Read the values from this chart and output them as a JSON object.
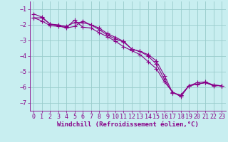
{
  "xlabel": "Windchill (Refroidissement éolien,°C)",
  "background_color": "#c8eef0",
  "line_color": "#880088",
  "grid_color": "#99cccc",
  "series": [
    {
      "x": [
        0,
        1,
        2,
        3,
        4,
        5,
        6,
        7,
        8,
        9,
        10,
        11,
        12,
        13,
        14,
        15,
        16,
        17,
        18,
        19,
        20,
        21,
        22,
        23
      ],
      "y": [
        -1.55,
        -1.75,
        -2.05,
        -2.1,
        -2.15,
        -1.7,
        -2.15,
        -2.2,
        -2.5,
        -2.75,
        -3.05,
        -3.4,
        -3.65,
        -3.9,
        -4.35,
        -4.8,
        -5.65,
        -6.3,
        -6.6,
        -5.9,
        -5.8,
        -5.7,
        -5.9,
        -5.9
      ]
    },
    {
      "x": [
        0,
        1,
        2,
        3,
        4,
        5,
        6,
        7,
        8,
        9,
        10,
        11,
        12,
        13,
        14,
        15,
        16,
        17,
        18,
        19,
        20,
        21,
        22,
        23
      ],
      "y": [
        -1.3,
        -1.5,
        -1.95,
        -2.05,
        -2.2,
        -2.1,
        -1.75,
        -2.0,
        -2.2,
        -2.55,
        -2.8,
        -3.05,
        -3.55,
        -3.7,
        -4.0,
        -4.5,
        -5.5,
        -6.35,
        -6.5,
        -5.9,
        -5.7,
        -5.65,
        -5.85,
        -5.9
      ]
    },
    {
      "x": [
        0,
        1,
        2,
        3,
        4,
        5,
        6,
        7,
        8,
        9,
        10,
        11,
        12,
        13,
        14,
        15,
        16,
        17,
        18,
        19,
        20,
        21,
        22,
        23
      ],
      "y": [
        -1.55,
        -1.55,
        -1.95,
        -2.0,
        -2.1,
        -1.85,
        -1.85,
        -2.0,
        -2.3,
        -2.65,
        -2.9,
        -3.1,
        -3.55,
        -3.7,
        -3.9,
        -4.3,
        -5.25,
        -6.35,
        -6.5,
        -5.9,
        -5.8,
        -5.7,
        -5.85,
        -5.9
      ]
    }
  ],
  "xlim": [
    -0.5,
    23.5
  ],
  "ylim": [
    -7.5,
    -0.5
  ],
  "yticks": [
    -7,
    -6,
    -5,
    -4,
    -3,
    -2,
    -1
  ],
  "xticks": [
    0,
    1,
    2,
    3,
    4,
    5,
    6,
    7,
    8,
    9,
    10,
    11,
    12,
    13,
    14,
    15,
    16,
    17,
    18,
    19,
    20,
    21,
    22,
    23
  ],
  "tick_fontsize": 6,
  "xlabel_fontsize": 6.5,
  "marker": "+"
}
